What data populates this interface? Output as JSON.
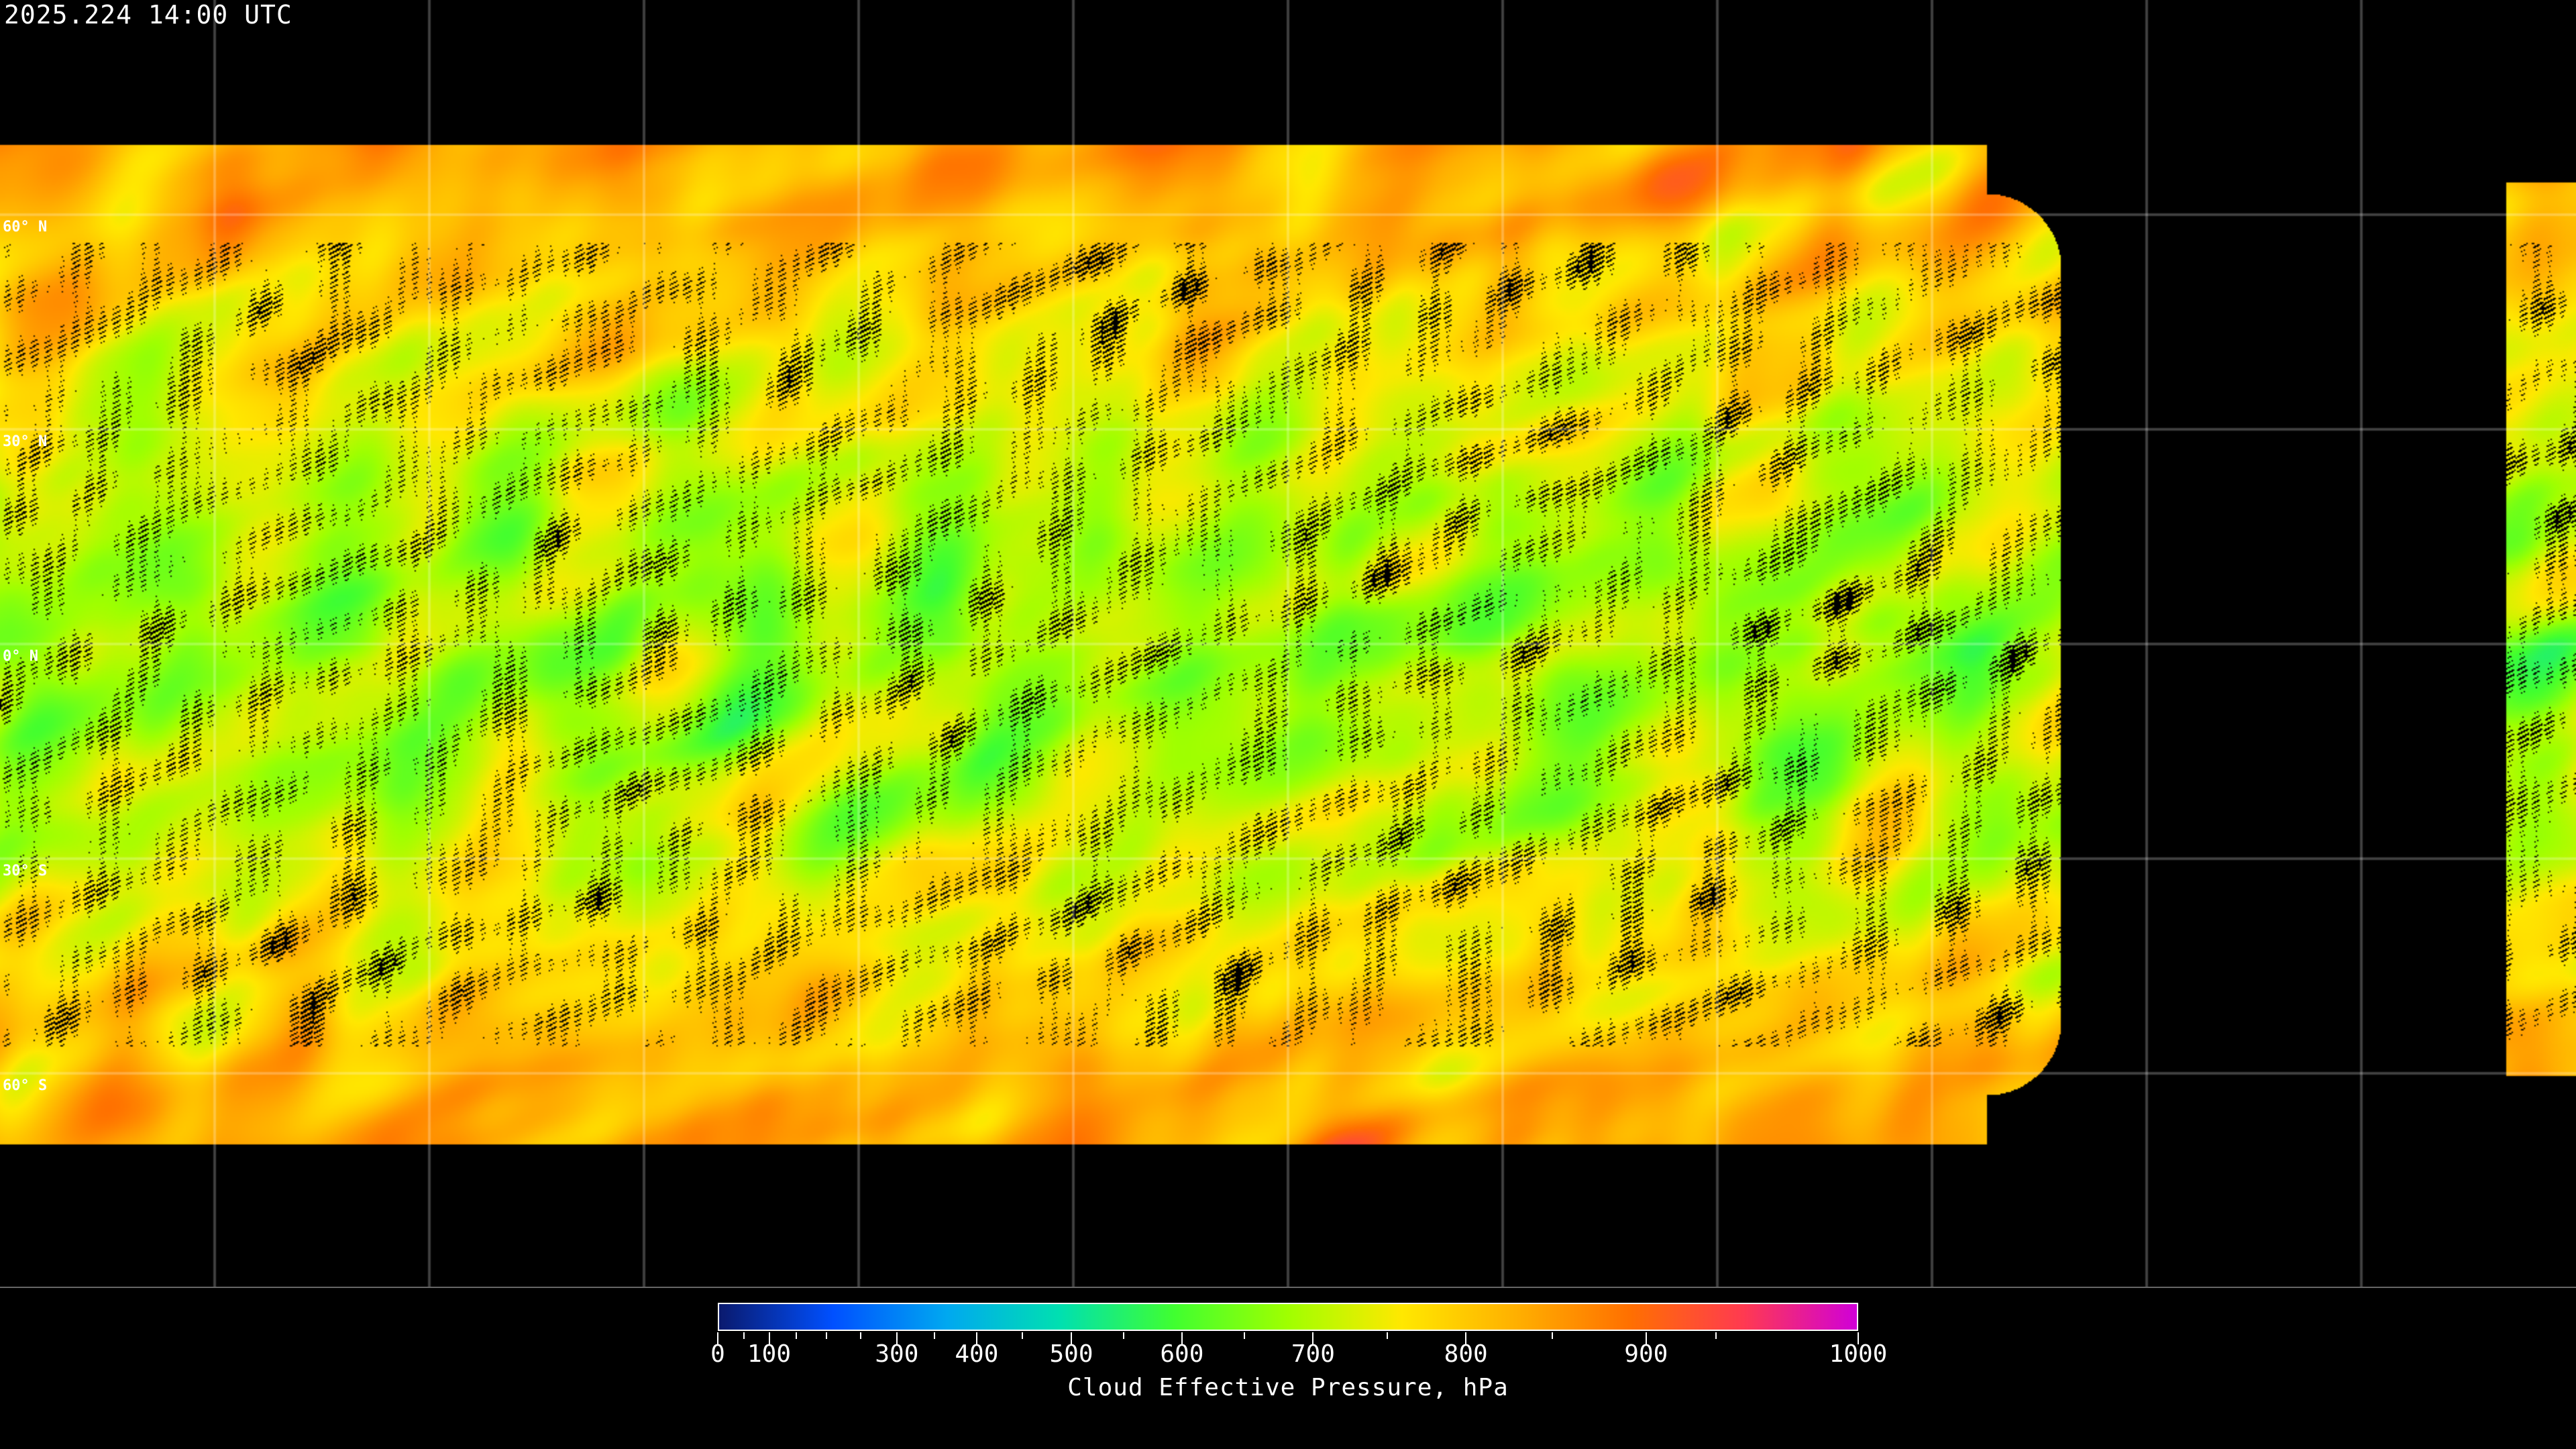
{
  "timestamp": "2025.224 14:00 UTC",
  "latitude_labels": [
    "60° N",
    "30° N",
    "0° N",
    "30° S",
    "60° S"
  ],
  "colorbar": {
    "title": "Cloud Effective Pressure, hPa",
    "ticks": [
      "0",
      "100",
      "300",
      "400",
      "500",
      "600",
      "700",
      "800",
      "900",
      "1000"
    ],
    "range": [
      0,
      1000
    ],
    "colors": [
      "#0a1a6e",
      "#0050ff",
      "#00a8f0",
      "#00e0b0",
      "#40ff30",
      "#a0ff00",
      "#ffe800",
      "#ffb000",
      "#ff7000",
      "#ff3a50",
      "#d000d8"
    ]
  },
  "map": {
    "projection": "equirectangular",
    "gridlines": "every 30 degrees",
    "background_color": "#000000",
    "missing_data_color": "#000000"
  }
}
